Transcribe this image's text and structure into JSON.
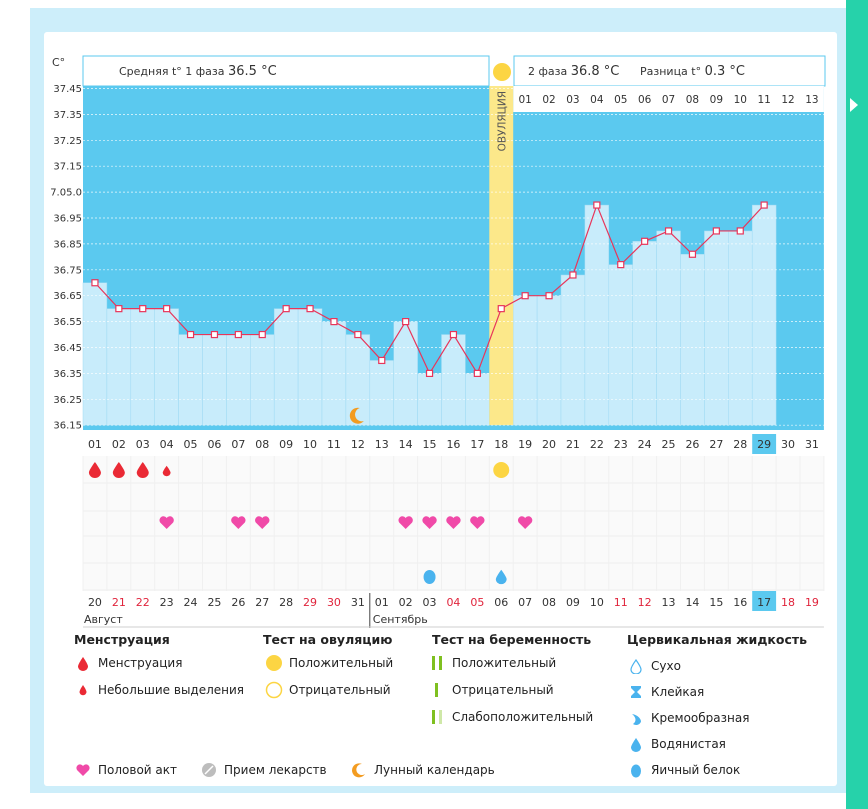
{
  "colors": {
    "background_light": "#cdeefa",
    "chart_fill": "#5bc9ef",
    "bar_fill": "#c8ecfb",
    "line": "#e8355a",
    "ovulation": "#fce88a",
    "menstruation": "#ea2a35",
    "heart": "#f04aa8",
    "moon": "#f39c21",
    "drop": "#4ab3ee",
    "green": "#7fc020",
    "accent": "#26d2aa"
  },
  "header": {
    "unit": "C°",
    "phase1_text": "Средняя t° 1 фаза",
    "phase1_value": "36.5 °C",
    "phase2_text": "2 фаза",
    "phase2_value": "36.8 °C",
    "diff_text": "Разница t°",
    "diff_value": "0.3 °C",
    "ovulation_label": "ОВУЛЯЦИЯ"
  },
  "chart_data": {
    "type": "line",
    "title": "",
    "ylabel": "C°",
    "y_tick_labels": [
      "37.45",
      "37.35",
      "37.25",
      "37.15",
      "7.05.0",
      "36.95",
      "36.85",
      "36.75",
      "36.65",
      "36.55",
      "36.45",
      "36.35",
      "36.25",
      "36.15"
    ],
    "ylim": [
      36.15,
      37.45
    ],
    "cycle_days": [
      "01",
      "02",
      "03",
      "04",
      "05",
      "06",
      "07",
      "08",
      "09",
      "10",
      "11",
      "12",
      "13",
      "14",
      "15",
      "16",
      "17",
      "18",
      "19",
      "20",
      "21",
      "22",
      "23",
      "24",
      "25",
      "26",
      "27",
      "28",
      "29",
      "30",
      "31"
    ],
    "phase2_days": [
      "01",
      "02",
      "03",
      "04",
      "05",
      "06",
      "07",
      "08",
      "09",
      "10",
      "11",
      "12",
      "13"
    ],
    "temperatures": [
      36.7,
      36.6,
      36.6,
      36.6,
      36.5,
      36.5,
      36.5,
      36.5,
      36.6,
      36.6,
      36.55,
      36.5,
      36.4,
      36.55,
      36.35,
      36.5,
      36.35,
      36.6,
      36.65,
      36.65,
      36.73,
      37.0,
      36.77,
      36.86,
      36.9,
      36.81,
      36.9,
      36.9,
      37.0
    ],
    "ovulation_day": "18",
    "today_cycle_day": "29",
    "calendar_dates": [
      "20",
      "21",
      "22",
      "23",
      "24",
      "25",
      "26",
      "27",
      "28",
      "29",
      "30",
      "31",
      "01",
      "02",
      "03",
      "04",
      "05",
      "06",
      "07",
      "08",
      "09",
      "10",
      "11",
      "12",
      "13",
      "14",
      "15",
      "16",
      "17",
      "18",
      "19"
    ],
    "red_dates_idx": [
      1,
      2,
      9,
      10,
      15,
      16,
      22,
      23,
      29,
      30
    ],
    "today_date_idx": 28,
    "month_labels": [
      "Август",
      "Сентябрь"
    ],
    "markers": {
      "menstruation_days": [
        1,
        2,
        3
      ],
      "light_bleeding_days": [
        4
      ],
      "ovulation_test_positive_days": [
        18
      ],
      "intercourse_days": [
        4,
        7,
        8,
        14,
        15,
        16,
        17,
        19
      ],
      "fluid_days": [
        15,
        18
      ],
      "moon_days": [
        12
      ]
    }
  },
  "legend": {
    "groups": [
      {
        "title": "Менструация",
        "items": [
          "Менструация",
          "Небольшие выделения"
        ]
      },
      {
        "title": "Тест на овуляцию",
        "items": [
          "Положительный",
          "Отрицательный"
        ]
      },
      {
        "title": "Тест на беременность",
        "items": [
          "Положительный",
          "Отрицательный",
          "Слабоположительный"
        ]
      },
      {
        "title": "Цервикальная жидкость",
        "items": [
          "Сухо",
          "Клейкая",
          "Кремообразная",
          "Водянистая",
          "Яичный белок"
        ]
      }
    ],
    "bottom": [
      "Половой акт",
      "Прием лекарств",
      "Лунный календарь"
    ]
  }
}
